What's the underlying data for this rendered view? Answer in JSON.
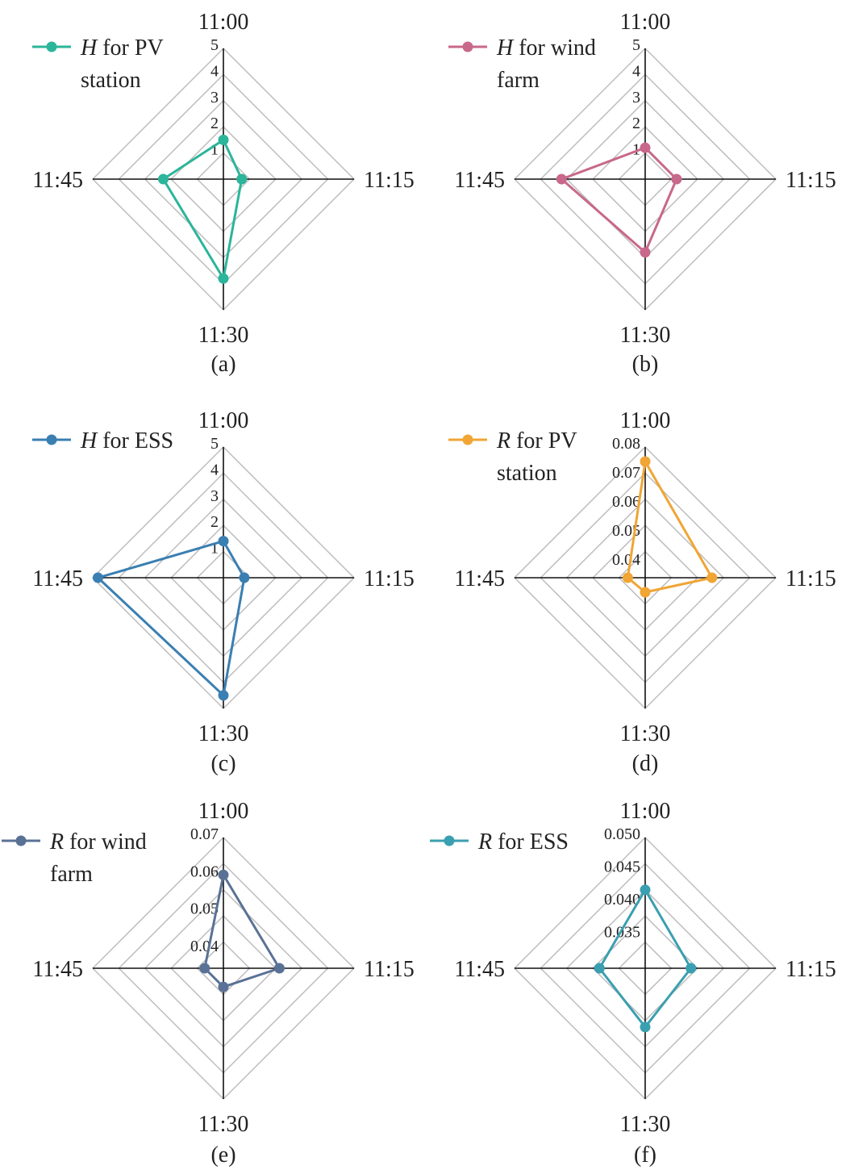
{
  "chart_data": [
    {
      "type": "radar",
      "caption": "(a)",
      "axes": [
        "11:00",
        "11:15",
        "11:30",
        "11:45"
      ],
      "rlim": [
        0,
        5
      ],
      "ticks": [
        "1",
        "2",
        "3",
        "4",
        "5"
      ],
      "tick_values": [
        1,
        2,
        3,
        4,
        5
      ],
      "series": [
        {
          "name_var": "H",
          "name_rest": [
            " for PV",
            "station"
          ],
          "color": "#2bb59a",
          "values": [
            1.5,
            0.7,
            3.8,
            2.3
          ]
        }
      ]
    },
    {
      "type": "radar",
      "caption": "(b)",
      "axes": [
        "11:00",
        "11:15",
        "11:30",
        "11:45"
      ],
      "rlim": [
        0,
        5
      ],
      "ticks": [
        "1",
        "2",
        "3",
        "4",
        "5"
      ],
      "tick_values": [
        1,
        2,
        3,
        4,
        5
      ],
      "series": [
        {
          "name_var": "H",
          "name_rest": [
            " for wind",
            "farm"
          ],
          "color": "#c8688a",
          "values": [
            1.2,
            1.2,
            2.8,
            3.2
          ]
        }
      ]
    },
    {
      "type": "radar",
      "caption": "(c)",
      "axes": [
        "11:00",
        "11:15",
        "11:30",
        "11:45"
      ],
      "rlim": [
        0,
        5
      ],
      "ticks": [
        "1",
        "2",
        "3",
        "4",
        "5"
      ],
      "tick_values": [
        1,
        2,
        3,
        4,
        5
      ],
      "series": [
        {
          "name_var": "H",
          "name_rest": [
            " for ESS"
          ],
          "color": "#3a7fb2",
          "values": [
            1.4,
            0.8,
            4.5,
            4.8
          ]
        }
      ]
    },
    {
      "type": "radar",
      "caption": "(d)",
      "axes": [
        "11:00",
        "11:15",
        "11:30",
        "11:45"
      ],
      "rlim": [
        0.035,
        0.08
      ],
      "ticks": [
        "0.04",
        "0.05",
        "0.06",
        "0.07",
        "0.08"
      ],
      "tick_values": [
        0.04,
        0.05,
        0.06,
        0.07,
        0.08
      ],
      "series": [
        {
          "name_var": "R",
          "name_rest": [
            " for PV",
            "station"
          ],
          "color": "#f0a534",
          "values": [
            0.075,
            0.058,
            0.04,
            0.041
          ]
        }
      ]
    },
    {
      "type": "radar",
      "caption": "(e)",
      "axes": [
        "11:00",
        "11:15",
        "11:30",
        "11:45"
      ],
      "rlim": [
        0.035,
        0.07
      ],
      "ticks": [
        "0.04",
        "0.05",
        "0.06",
        "0.07"
      ],
      "tick_values": [
        0.04,
        0.05,
        0.06,
        0.07
      ],
      "series": [
        {
          "name_var": "R",
          "name_rest": [
            " for wind",
            "farm"
          ],
          "color": "#5a7196",
          "values": [
            0.06,
            0.05,
            0.04,
            0.04
          ]
        }
      ]
    },
    {
      "type": "radar",
      "caption": "(f)",
      "axes": [
        "11:00",
        "11:15",
        "11:30",
        "11:45"
      ],
      "rlim": [
        0.03,
        0.05
      ],
      "ticks": [
        "0.035",
        "0.040",
        "0.045",
        "0.050"
      ],
      "tick_values": [
        0.035,
        0.04,
        0.045,
        0.05
      ],
      "series": [
        {
          "name_var": "R",
          "name_rest": [
            " for ESS"
          ],
          "color": "#3a9fb0",
          "values": [
            0.042,
            0.037,
            0.039,
            0.037
          ]
        }
      ]
    }
  ]
}
